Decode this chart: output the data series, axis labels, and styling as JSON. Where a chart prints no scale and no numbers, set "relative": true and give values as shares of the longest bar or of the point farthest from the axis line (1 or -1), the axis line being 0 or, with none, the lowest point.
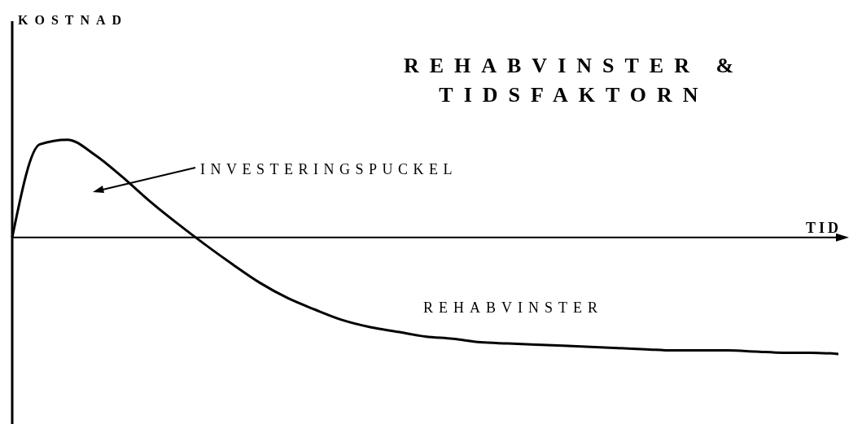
{
  "chart_data": {
    "type": "line",
    "title": "REHABVINSTER & TIDSFAKTORN",
    "xlabel": "TID",
    "annotations": [
      "INVESTERINGSPUCKEL",
      "REHABVINSTER",
      "KOSTNAD"
    ],
    "relative": true,
    "marker": "none",
    "color": "#000000",
    "categories": [
      null,
      null,
      null,
      null,
      null,
      null,
      null,
      null,
      null,
      null,
      null,
      null,
      null,
      null,
      null,
      null,
      null,
      null,
      null,
      null,
      null,
      null,
      null,
      null,
      null,
      null,
      null,
      null,
      null,
      null,
      null
    ],
    "values": [
      0,
      0.8,
      0.84,
      0.71,
      0.52,
      0.31,
      0.12,
      -0.06,
      -0.23,
      -0.39,
      -0.52,
      -0.62,
      -0.71,
      -0.77,
      -0.81,
      -0.85,
      -0.87,
      -0.9,
      -0.91,
      -0.92,
      -0.93,
      -0.94,
      -0.95,
      -0.96,
      -0.97,
      -0.97,
      -0.97,
      -0.98,
      -0.99,
      -0.99,
      -1
    ]
  }
}
